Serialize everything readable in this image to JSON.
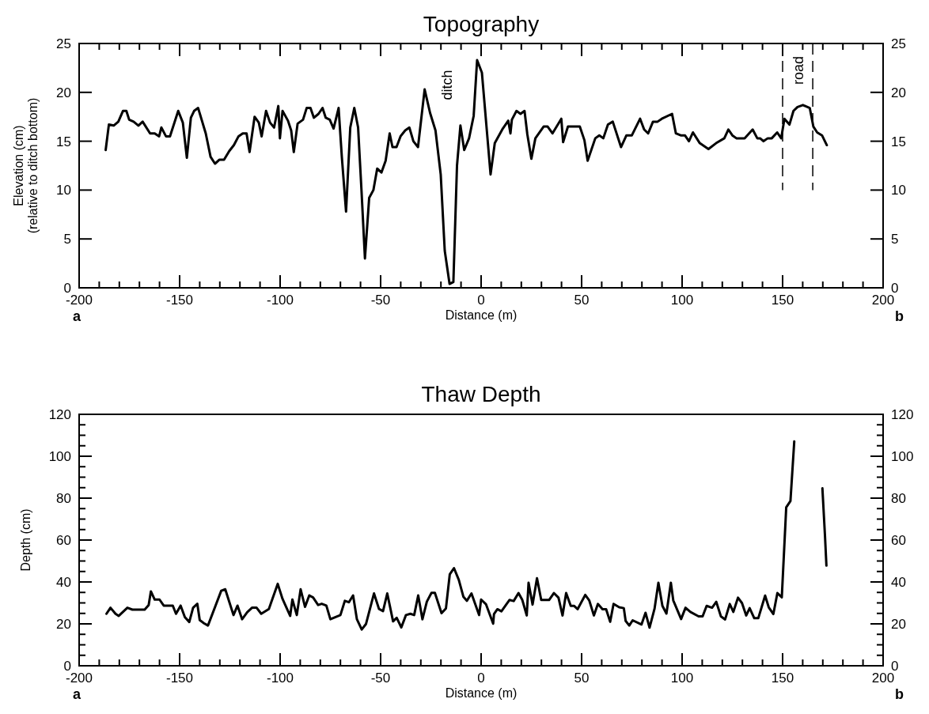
{
  "chart_data": [
    {
      "type": "line",
      "title": "Topography",
      "xlabel": "Distance (m)",
      "ylabel": "Elevation (cm)\n(relative to ditch bottom)",
      "color": "#000000",
      "line_style": "solid",
      "marker": "none",
      "xlim": [
        -200,
        200
      ],
      "xticks": [
        -200,
        {
          "value": -190,
          "label": null
        },
        {
          "value": -180,
          "label": null
        },
        {
          "value": -170,
          "label": null
        },
        {
          "value": -160,
          "label": null
        },
        -150,
        {
          "value": -140,
          "label": null
        },
        {
          "value": -130,
          "label": null
        },
        {
          "value": -120,
          "label": null
        },
        {
          "value": -110,
          "label": null
        },
        -100,
        {
          "value": -90,
          "label": null
        },
        {
          "value": -80,
          "label": null
        },
        {
          "value": -70,
          "label": null
        },
        {
          "value": -60,
          "label": null
        },
        -50,
        {
          "value": -40,
          "label": null
        },
        {
          "value": -30,
          "label": null
        },
        {
          "value": -20,
          "label": null
        },
        {
          "value": -10,
          "label": null
        },
        0,
        {
          "value": 10,
          "label": null
        },
        {
          "value": 20,
          "label": null
        },
        {
          "value": 30,
          "label": null
        },
        {
          "value": 40,
          "label": null
        },
        50,
        {
          "value": 60,
          "label": null
        },
        {
          "value": 70,
          "label": null
        },
        {
          "value": 80,
          "label": null
        },
        {
          "value": 90,
          "label": null
        },
        100,
        {
          "value": 110,
          "label": null
        },
        {
          "value": 120,
          "label": null
        },
        {
          "value": 130,
          "label": null
        },
        {
          "value": 140,
          "label": null
        },
        150,
        {
          "value": 160,
          "label": null
        },
        {
          "value": 170,
          "label": null
        },
        {
          "value": 180,
          "label": null
        },
        {
          "value": 190,
          "label": null
        },
        200
      ],
      "ylim": [
        0,
        25
      ],
      "yticks": [
        0,
        5,
        10,
        15,
        20,
        25
      ],
      "y2lim": [
        0,
        25
      ],
      "y2ticks": [
        0,
        5,
        10,
        15,
        20,
        25
      ],
      "x": [
        -186.8,
        -185.2,
        -182.8,
        -180.5,
        -178.2,
        -176.5,
        -175.1,
        -172.9,
        -170.5,
        -168.4,
        -164.7,
        -162.4,
        -160.2,
        -159.1,
        -156.8,
        -154.8,
        -150.7,
        -148.4,
        -146.4,
        -144.4,
        -142.8,
        -140.8,
        -137,
        -134.6,
        -132.4,
        -130.3,
        -127.9,
        -125.3,
        -123,
        -120.7,
        -118.6,
        -116.7,
        -115.2,
        -112.7,
        -110.6,
        -109.2,
        -107,
        -105,
        -103,
        -100.9,
        -100.1,
        -98.8,
        -96.1,
        -94.5,
        -93.2,
        -91.3,
        -88.6,
        -86.8,
        -84.9,
        -83.2,
        -80.9,
        -78.9,
        -77.3,
        -75.3,
        -73.4,
        -70.9,
        -69.3,
        -67.2,
        -65.1,
        -63.1,
        -61.2,
        -59.5,
        -57.8,
        -55.7,
        -53.6,
        -51.7,
        -49.6,
        -47.5,
        -45.5,
        -44.1,
        -42.1,
        -40.1,
        -37.8,
        -35.7,
        -33.7,
        -31.4,
        -28.1,
        -25.4,
        -22.7,
        -20.1,
        -18.1,
        -15.7,
        -13.8,
        -12,
        -10.3,
        -8.4,
        -6,
        -3.7,
        -2,
        0.4,
        4.7,
        6.8,
        10.8,
        13.5,
        14.6,
        15.3,
        17.6,
        19.6,
        21.6,
        23,
        25,
        27,
        31.1,
        33.1,
        35.5,
        39.9,
        40.8,
        43.2,
        49.1,
        51.4,
        53,
        56.8,
        58.8,
        60.8,
        63.1,
        65.5,
        69.6,
        72.3,
        75,
        79.1,
        81.1,
        83.1,
        85.5,
        87.8,
        89.9,
        95,
        96.9,
        99.3,
        101.4,
        103.4,
        105.4,
        108.8,
        113.1,
        116.9,
        121,
        123,
        125,
        127,
        131.1,
        135.1,
        137.4,
        138.8,
        140.5,
        142.6,
        144.6,
        147.3,
        149.3,
        150.9,
        153.4,
        155.4,
        157.4,
        160.1,
        163.5,
        165.3,
        167.2,
        169.6,
        172
      ],
      "values": [
        14.1,
        16.7,
        16.6,
        17,
        18.1,
        18.1,
        17.2,
        17,
        16.6,
        17,
        15.8,
        15.8,
        15.5,
        16.4,
        15.5,
        15.5,
        18.1,
        16.9,
        13.3,
        17.4,
        18.1,
        18.4,
        15.8,
        13.4,
        12.7,
        13.1,
        13.1,
        14,
        14.6,
        15.5,
        15.8,
        15.8,
        13.9,
        17.5,
        16.9,
        15.5,
        18.1,
        16.9,
        16.4,
        18.6,
        15.3,
        18.1,
        17.1,
        16.1,
        13.9,
        16.8,
        17.2,
        18.4,
        18.4,
        17.4,
        17.8,
        18.4,
        17.4,
        17.2,
        16.3,
        18.4,
        13.4,
        7.8,
        16.4,
        18.4,
        16.4,
        9.9,
        3,
        9.2,
        10,
        12.2,
        11.8,
        13,
        15.8,
        14.4,
        14.4,
        15.5,
        16.1,
        16.4,
        15,
        14.4,
        20.3,
        17.9,
        16.1,
        11.6,
        3.8,
        0.4,
        0.6,
        12.5,
        16.6,
        14.1,
        15.3,
        17.6,
        23.3,
        22,
        11.6,
        14.8,
        16.3,
        17.1,
        15.8,
        17.2,
        18.1,
        17.8,
        18.1,
        15.7,
        13.2,
        15.3,
        16.5,
        16.5,
        15.8,
        17.3,
        14.9,
        16.5,
        16.5,
        15.1,
        13,
        15.3,
        15.6,
        15.3,
        16.7,
        17,
        14.4,
        15.6,
        15.6,
        17.3,
        16.2,
        15.8,
        17,
        17,
        17.3,
        17.8,
        15.8,
        15.6,
        15.6,
        15,
        15.9,
        14.8,
        14.2,
        14.8,
        15.3,
        16.2,
        15.6,
        15.3,
        15.3,
        16.2,
        15.3,
        15.3,
        15,
        15.3,
        15.3,
        15.9,
        15.3,
        17.3,
        16.7,
        18.1,
        18.5,
        18.7,
        18.4,
        16.5,
        15.9,
        15.6,
        14.6
      ],
      "ref_lines": [
        {
          "axis": "x",
          "value": 150,
          "line_style": "dashed",
          "color": "#000000"
        },
        {
          "axis": "x",
          "value": 165,
          "line_style": "dashed",
          "color": "#000000"
        }
      ],
      "annotations": [
        "a",
        "b",
        "ditch",
        "road"
      ]
    },
    {
      "type": "line",
      "title": "Thaw Depth",
      "xlabel": "Distance (m)",
      "ylabel": "Depth (cm)",
      "color": "#000000",
      "line_style": "solid",
      "marker": "none",
      "xlim": [
        -200,
        200
      ],
      "xticks": [
        -200,
        {
          "value": -190,
          "label": null
        },
        {
          "value": -180,
          "label": null
        },
        {
          "value": -170,
          "label": null
        },
        {
          "value": -160,
          "label": null
        },
        -150,
        {
          "value": -140,
          "label": null
        },
        {
          "value": -130,
          "label": null
        },
        {
          "value": -120,
          "label": null
        },
        {
          "value": -110,
          "label": null
        },
        -100,
        {
          "value": -90,
          "label": null
        },
        {
          "value": -80,
          "label": null
        },
        {
          "value": -70,
          "label": null
        },
        {
          "value": -60,
          "label": null
        },
        -50,
        {
          "value": -40,
          "label": null
        },
        {
          "value": -30,
          "label": null
        },
        {
          "value": -20,
          "label": null
        },
        {
          "value": -10,
          "label": null
        },
        0,
        {
          "value": 10,
          "label": null
        },
        {
          "value": 20,
          "label": null
        },
        {
          "value": 30,
          "label": null
        },
        {
          "value": 40,
          "label": null
        },
        50,
        {
          "value": 60,
          "label": null
        },
        {
          "value": 70,
          "label": null
        },
        {
          "value": 80,
          "label": null
        },
        {
          "value": 90,
          "label": null
        },
        100,
        {
          "value": 110,
          "label": null
        },
        {
          "value": 120,
          "label": null
        },
        {
          "value": 130,
          "label": null
        },
        {
          "value": 140,
          "label": null
        },
        150,
        {
          "value": 160,
          "label": null
        },
        {
          "value": 170,
          "label": null
        },
        {
          "value": 180,
          "label": null
        },
        {
          "value": 190,
          "label": null
        },
        200
      ],
      "ylim": [
        0,
        120
      ],
      "yticks": [
        0,
        {
          "value": 5,
          "label": null
        },
        {
          "value": 10,
          "label": null
        },
        {
          "value": 15,
          "label": null
        },
        20,
        {
          "value": 25,
          "label": null
        },
        {
          "value": 30,
          "label": null
        },
        {
          "value": 35,
          "label": null
        },
        40,
        {
          "value": 45,
          "label": null
        },
        {
          "value": 50,
          "label": null
        },
        {
          "value": 55,
          "label": null
        },
        60,
        {
          "value": 65,
          "label": null
        },
        {
          "value": 70,
          "label": null
        },
        {
          "value": 75,
          "label": null
        },
        80,
        {
          "value": 85,
          "label": null
        },
        {
          "value": 90,
          "label": null
        },
        {
          "value": 95,
          "label": null
        },
        100,
        {
          "value": 105,
          "label": null
        },
        {
          "value": 110,
          "label": null
        },
        {
          "value": 115,
          "label": null
        },
        120
      ],
      "y2lim": [
        0,
        120
      ],
      "y2ticks": [
        0,
        {
          "value": 5,
          "label": null
        },
        {
          "value": 10,
          "label": null
        },
        {
          "value": 15,
          "label": null
        },
        20,
        {
          "value": 25,
          "label": null
        },
        {
          "value": 30,
          "label": null
        },
        {
          "value": 35,
          "label": null
        },
        40,
        {
          "value": 45,
          "label": null
        },
        {
          "value": 50,
          "label": null
        },
        {
          "value": 55,
          "label": null
        },
        60,
        {
          "value": 65,
          "label": null
        },
        {
          "value": 70,
          "label": null
        },
        {
          "value": 75,
          "label": null
        },
        80,
        {
          "value": 85,
          "label": null
        },
        {
          "value": 90,
          "label": null
        },
        {
          "value": 95,
          "label": null
        },
        100,
        {
          "value": 105,
          "label": null
        },
        {
          "value": 110,
          "label": null
        },
        {
          "value": 115,
          "label": null
        },
        120
      ],
      "x": [
        -186.4,
        -184.4,
        -181.9,
        -180.3,
        -176,
        -173.5,
        -167.4,
        -165.4,
        -164.3,
        -162.4,
        -160,
        -157.9,
        -153.4,
        -151.8,
        -149.5,
        -147.4,
        -145.2,
        -143.3,
        -141.2,
        -140,
        -137.9,
        -135.9,
        -129.3,
        -127.3,
        -123.2,
        -121.2,
        -118.9,
        -116.4,
        -114,
        -111.7,
        -109.4,
        -105.6,
        -101.2,
        -98.8,
        -95,
        -93.9,
        -91.7,
        -89.8,
        -87.6,
        -85.5,
        -83.6,
        -81.1,
        -79.3,
        -77,
        -75,
        -70,
        -67.8,
        -65.8,
        -63.7,
        -61.8,
        -59.4,
        -57.3,
        -53.3,
        -50.8,
        -48.8,
        -46.7,
        -43.8,
        -42,
        -39.7,
        -37.4,
        -35.2,
        -33.3,
        -31.3,
        -29.2,
        -27,
        -24.7,
        -23,
        -19.7,
        -17.5,
        -15.6,
        -13.5,
        -11.1,
        -8.8,
        -7.1,
        -4.8,
        -1,
        0,
        2.4,
        6,
        6.4,
        8.1,
        10.1,
        14.1,
        16.2,
        18.6,
        20.5,
        22.7,
        23.6,
        25.6,
        27.8,
        29.9,
        33.8,
        36.2,
        38.5,
        40.5,
        42.3,
        44.6,
        46.2,
        48,
        51.8,
        53.8,
        56.1,
        58.1,
        60.4,
        62.2,
        64.2,
        65.9,
        68.7,
        71,
        71.9,
        73.7,
        75.4,
        79.8,
        81.8,
        83.8,
        86.3,
        88.2,
        90.2,
        92.2,
        94.4,
        95.6,
        99.5,
        101.7,
        104.1,
        108.2,
        110.2,
        112.2,
        114.9,
        117,
        119.3,
        121.4,
        123.7,
        125.5,
        127.8,
        129.8,
        131.9,
        133.6,
        135.9,
        137.9,
        141.3,
        143.1,
        145.4,
        147.4,
        149.6,
        151.8,
        153.9,
        155.8,
        163,
        169.8,
        171.1,
        171.8
      ],
      "values": [
        24.8,
        27.7,
        24.8,
        23.8,
        27.7,
        26.8,
        26.8,
        29,
        35.5,
        31.6,
        31.6,
        28.7,
        28.7,
        24.8,
        28.7,
        23.2,
        20.9,
        27.7,
        29.6,
        21.8,
        20.3,
        19.2,
        35.8,
        36.5,
        24.2,
        28.7,
        22.2,
        25.5,
        27.7,
        27.7,
        24.8,
        27.1,
        39.1,
        31.9,
        23.8,
        31.6,
        24.2,
        36.5,
        28.1,
        33.6,
        32.6,
        29,
        29.6,
        28.7,
        22.2,
        24.2,
        31,
        30.3,
        33.6,
        22.2,
        17.3,
        19.9,
        34.5,
        27.1,
        26.1,
        34.5,
        21.2,
        22.9,
        18.3,
        24.2,
        24.8,
        24.2,
        33.6,
        22.2,
        30.6,
        34.8,
        34.8,
        25.1,
        27.4,
        43.6,
        46.6,
        41,
        32.9,
        31,
        34.5,
        24.2,
        31.6,
        29.4,
        20.1,
        24.7,
        27,
        26,
        31.4,
        30.9,
        34.7,
        31.4,
        24,
        39.6,
        29.2,
        41.8,
        31.4,
        31.4,
        34.7,
        32.5,
        24,
        34.7,
        28.6,
        28.6,
        27,
        33.8,
        31.2,
        24,
        29.5,
        27,
        27,
        21,
        29.5,
        27.9,
        27.5,
        21.4,
        19.2,
        21.7,
        19.7,
        25.3,
        18.2,
        27.3,
        39.6,
        28.6,
        24.9,
        39.6,
        31.2,
        22.3,
        27.7,
        25.7,
        23.6,
        23.6,
        28.6,
        27.7,
        30.5,
        23.6,
        22.1,
        29.5,
        25.7,
        32.5,
        29.9,
        24,
        27.5,
        22.7,
        22.7,
        33.5,
        27.9,
        24.7,
        34.7,
        32.7,
        75.6,
        78.6,
        107.1,
        null,
        84.7,
        61.7,
        47.8
      ],
      "annotations": [
        "a",
        "b"
      ]
    }
  ]
}
